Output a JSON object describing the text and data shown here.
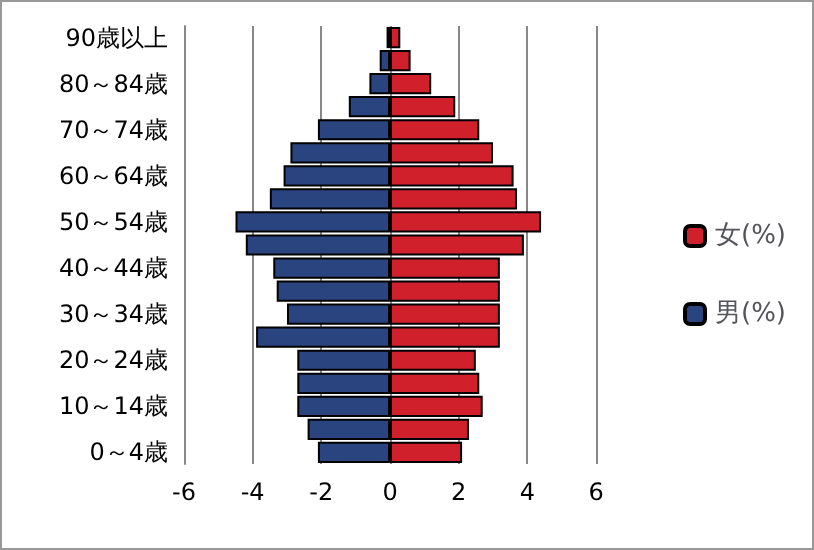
{
  "chart_data": {
    "type": "bar",
    "orientation": "horizontal",
    "stacked": true,
    "categories": [
      "90歳以上",
      null,
      "80～84歳",
      null,
      "70～74歳",
      null,
      "60～64歳",
      null,
      "50～54歳",
      null,
      "40～44歳",
      null,
      "30～34歳",
      null,
      "20～24歳",
      null,
      "10～14歳",
      null,
      "0～4歳"
    ],
    "series": [
      {
        "name": "女(%)",
        "color": "#d0202c",
        "values": [
          0.3,
          0.6,
          1.2,
          1.9,
          2.6,
          3.0,
          3.6,
          3.7,
          4.4,
          3.9,
          3.2,
          3.2,
          3.2,
          3.2,
          2.5,
          2.6,
          2.7,
          2.3,
          2.1
        ]
      },
      {
        "name": "男(%)",
        "color": "#2a4480",
        "values": [
          -0.1,
          -0.3,
          -0.6,
          -1.2,
          -2.1,
          -2.9,
          -3.1,
          -3.5,
          -4.5,
          -4.2,
          -3.4,
          -3.3,
          -3.0,
          -3.9,
          -2.7,
          -2.7,
          -2.7,
          -2.4,
          -2.1
        ]
      }
    ],
    "xlim": [
      -6,
      6
    ],
    "xticks": [
      -6,
      -4,
      -2,
      0,
      2,
      4,
      6
    ],
    "grid": "x",
    "legend": "right"
  }
}
